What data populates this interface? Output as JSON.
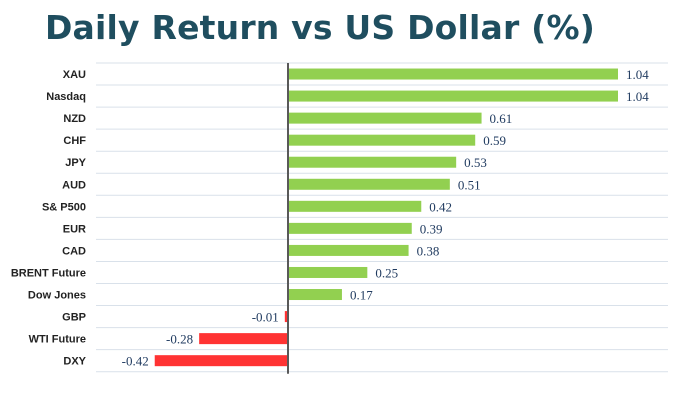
{
  "chart_data": {
    "type": "bar",
    "orientation": "horizontal",
    "title": "Daily Return vs US Dollar (%)",
    "xlabel": "",
    "ylabel": "",
    "categories": [
      "XAU",
      "Nasdaq",
      "NZD",
      "CHF",
      "JPY",
      "AUD",
      "S& P500",
      "EUR",
      "CAD",
      "BRENT Future",
      "Dow Jones",
      "GBP",
      "WTI Future",
      "DXY"
    ],
    "values": [
      1.04,
      1.04,
      0.61,
      0.59,
      0.53,
      0.51,
      0.42,
      0.39,
      0.38,
      0.25,
      0.17,
      -0.01,
      -0.28,
      -0.42
    ],
    "value_labels": [
      "1.04",
      "1.04",
      "0.61",
      "0.59",
      "0.53",
      "0.51",
      "0.42",
      "0.39",
      "0.38",
      "0.25",
      "0.17",
      "-0.01",
      "-0.28",
      "-0.42"
    ],
    "xlim": [
      -0.42,
      1.04
    ],
    "grid": true,
    "legend": "none",
    "colors": {
      "positive": "#92d050",
      "negative": "#ff3333",
      "axis": "#595959",
      "grid": "#d9e1ea",
      "title": "#1f4e5f"
    }
  }
}
